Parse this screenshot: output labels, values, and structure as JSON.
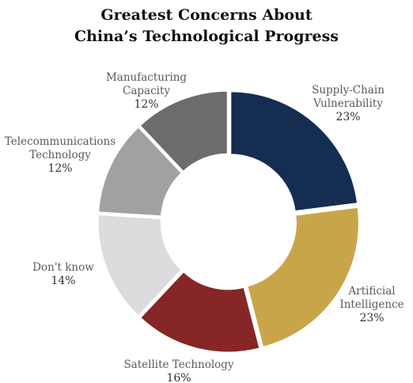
{
  "chart_data": {
    "type": "pie",
    "variant": "donut",
    "title": [
      "Greatest Concerns About",
      "China’s Technological Progress"
    ],
    "slices": [
      {
        "label": [
          "Supply-Chain",
          "Vulnerability"
        ],
        "value": 23,
        "value_label": "23%",
        "color": "#162d52"
      },
      {
        "label": [
          "Artificial",
          "Intelligence"
        ],
        "value": 23,
        "value_label": "23%",
        "color": "#c9a54a"
      },
      {
        "label": [
          "Satellite Technology"
        ],
        "value": 16,
        "value_label": "16%",
        "color": "#862626"
      },
      {
        "label": [
          "Don't know"
        ],
        "value": 14,
        "value_label": "14%",
        "color": "#dcdcdf"
      },
      {
        "label": [
          "Telecommunications",
          "Technology"
        ],
        "value": 12,
        "value_label": "12%",
        "color": "#a1a1a1"
      },
      {
        "label": [
          "Manufacturing",
          "Capacity"
        ],
        "value": 12,
        "value_label": "12%",
        "color": "#6c6c6c"
      }
    ],
    "start_angle": "12 o'clock",
    "direction": "clockwise",
    "legend": "none"
  }
}
